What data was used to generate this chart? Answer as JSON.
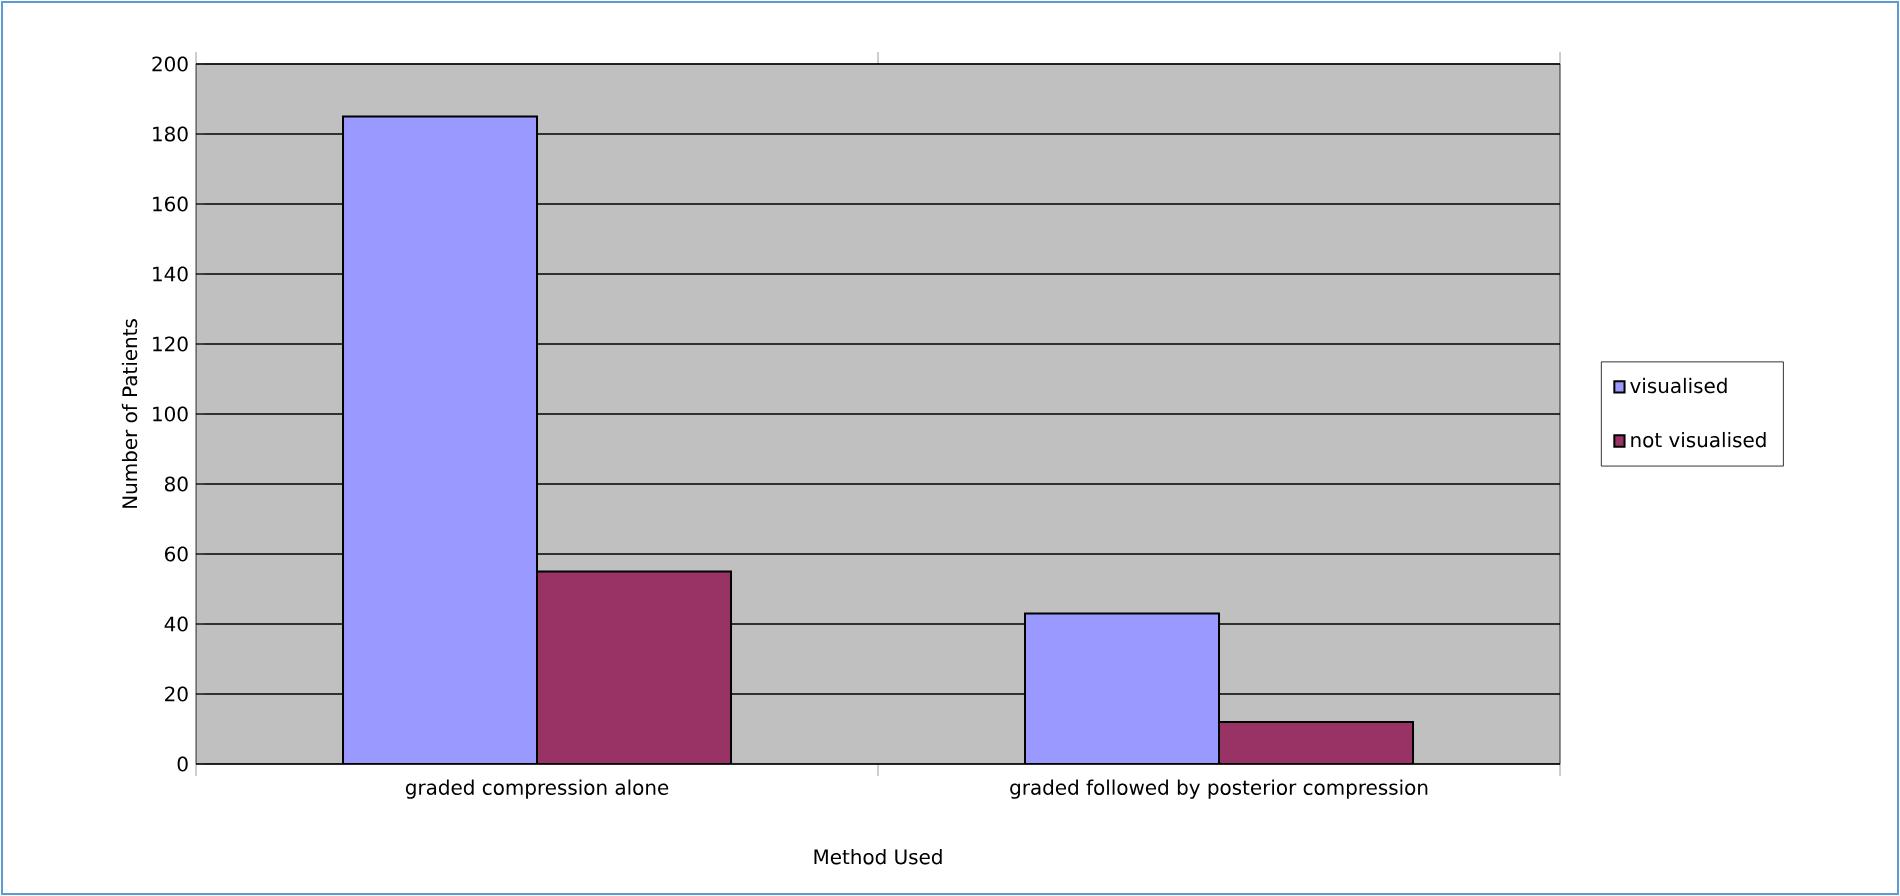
{
  "chart_data": {
    "type": "bar",
    "xlabel": "Method Used",
    "ylabel": "Number of Patients",
    "categories": [
      "graded compression alone",
      "graded followed by posterior compression"
    ],
    "series": [
      {
        "name": "visualised",
        "color": "#9999ff",
        "values": [
          185,
          43
        ]
      },
      {
        "name": "not visualised",
        "color": "#993366",
        "values": [
          55,
          12
        ]
      }
    ],
    "ylim": [
      0,
      200
    ],
    "yticks": [
      0,
      20,
      40,
      60,
      80,
      100,
      120,
      140,
      160,
      180,
      200
    ],
    "grid": "y",
    "legend": "right"
  }
}
